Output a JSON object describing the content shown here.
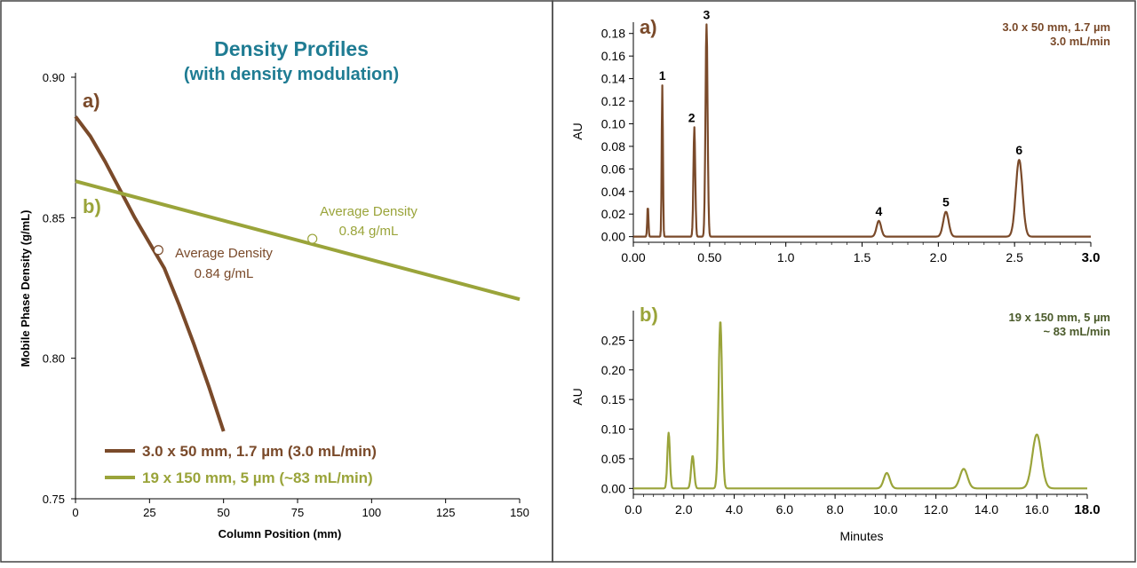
{
  "colors": {
    "brown": "#7a4a2a",
    "olive": "#9aa43a",
    "teal": "#1f7c93",
    "axis": "#000000",
    "frame": "#444444"
  },
  "chart_data": [
    {
      "type": "line",
      "title": "Density Profiles",
      "subtitle": "(with density modulation)",
      "xlabel": "Column Position (mm)",
      "ylabel": "Mobile Phase Density (g/mL)",
      "xlim": [
        0,
        150
      ],
      "ylim": [
        0.75,
        0.9
      ],
      "x_ticks": [
        "0",
        "25",
        "50",
        "75",
        "100",
        "125",
        "150"
      ],
      "y_ticks": [
        "0.75",
        "0.80",
        "0.85",
        "0.90"
      ],
      "grid": false,
      "legend_position": "bottom-left",
      "panel_labels": [
        "a)",
        "b)"
      ],
      "series": [
        {
          "name": "3.0 x 50 mm, 1.7 µm (3.0 mL/min)",
          "x": [
            0,
            5,
            10,
            15,
            20,
            25,
            30,
            35,
            40,
            45,
            50
          ],
          "y": [
            0.886,
            0.879,
            0.87,
            0.86,
            0.85,
            0.841,
            0.832,
            0.819,
            0.805,
            0.79,
            0.774
          ]
        },
        {
          "name": "19 x 150 mm, 5 µm (~83 mL/min)",
          "x": [
            0,
            150
          ],
          "y": [
            0.863,
            0.821
          ]
        }
      ],
      "annotations": [
        {
          "marker_x": 28,
          "marker_y": 0.8385,
          "line1": "Average Density",
          "line2": "0.84 g/mL"
        },
        {
          "marker_x": 80,
          "marker_y": 0.8425,
          "line1": "Average Density",
          "line2": "0.84 g/mL"
        }
      ]
    },
    {
      "type": "line",
      "panel_label": "a)",
      "conditions_line1": "3.0 x 50 mm, 1.7 µm",
      "conditions_line2": "3.0 mL/min",
      "ylabel": "AU",
      "xlabel": "",
      "xlim": [
        0,
        3.0
      ],
      "ylim": [
        -0.005,
        0.19
      ],
      "x_ticks": [
        "0.00",
        "0.50",
        "1.0",
        "1.5",
        "2.0",
        "2.5",
        "3.0"
      ],
      "y_ticks": [
        "0.00",
        "0.02",
        "0.04",
        "0.06",
        "0.08",
        "0.10",
        "0.12",
        "0.14",
        "0.16",
        "0.18"
      ],
      "peaks": [
        {
          "label": "",
          "t": 0.095,
          "height": 0.027,
          "width": 0.004
        },
        {
          "label": "1",
          "t": 0.19,
          "height": 0.134,
          "width": 0.004
        },
        {
          "label": "2",
          "t": 0.4,
          "height": 0.097,
          "width": 0.006
        },
        {
          "label": "3",
          "t": 0.48,
          "height": 0.188,
          "width": 0.007
        },
        {
          "label": "4",
          "t": 1.61,
          "height": 0.014,
          "width": 0.015
        },
        {
          "label": "5",
          "t": 2.05,
          "height": 0.022,
          "width": 0.018
        },
        {
          "label": "6",
          "t": 2.53,
          "height": 0.068,
          "width": 0.022
        }
      ]
    },
    {
      "type": "line",
      "panel_label": "b)",
      "conditions_line1": "19 x 150 mm, 5 µm",
      "conditions_line2": "~ 83 mL/min",
      "ylabel": "AU",
      "xlabel": "Minutes",
      "xlim": [
        0,
        18.0
      ],
      "ylim": [
        -0.01,
        0.3
      ],
      "x_ticks": [
        "0.0",
        "2.0",
        "4.0",
        "6.0",
        "8.0",
        "10.0",
        "12.0",
        "14.0",
        "16.0",
        "18.0"
      ],
      "y_ticks": [
        "0.00",
        "0.05",
        "0.10",
        "0.15",
        "0.20",
        "0.25"
      ],
      "peaks": [
        {
          "label": "",
          "t": 1.4,
          "height": 0.094,
          "width": 0.05
        },
        {
          "label": "",
          "t": 2.35,
          "height": 0.055,
          "width": 0.06
        },
        {
          "label": "",
          "t": 3.45,
          "height": 0.283,
          "width": 0.07
        },
        {
          "label": "",
          "t": 10.05,
          "height": 0.026,
          "width": 0.12
        },
        {
          "label": "",
          "t": 13.1,
          "height": 0.033,
          "width": 0.15
        },
        {
          "label": "",
          "t": 16.0,
          "height": 0.091,
          "width": 0.18
        }
      ]
    }
  ]
}
